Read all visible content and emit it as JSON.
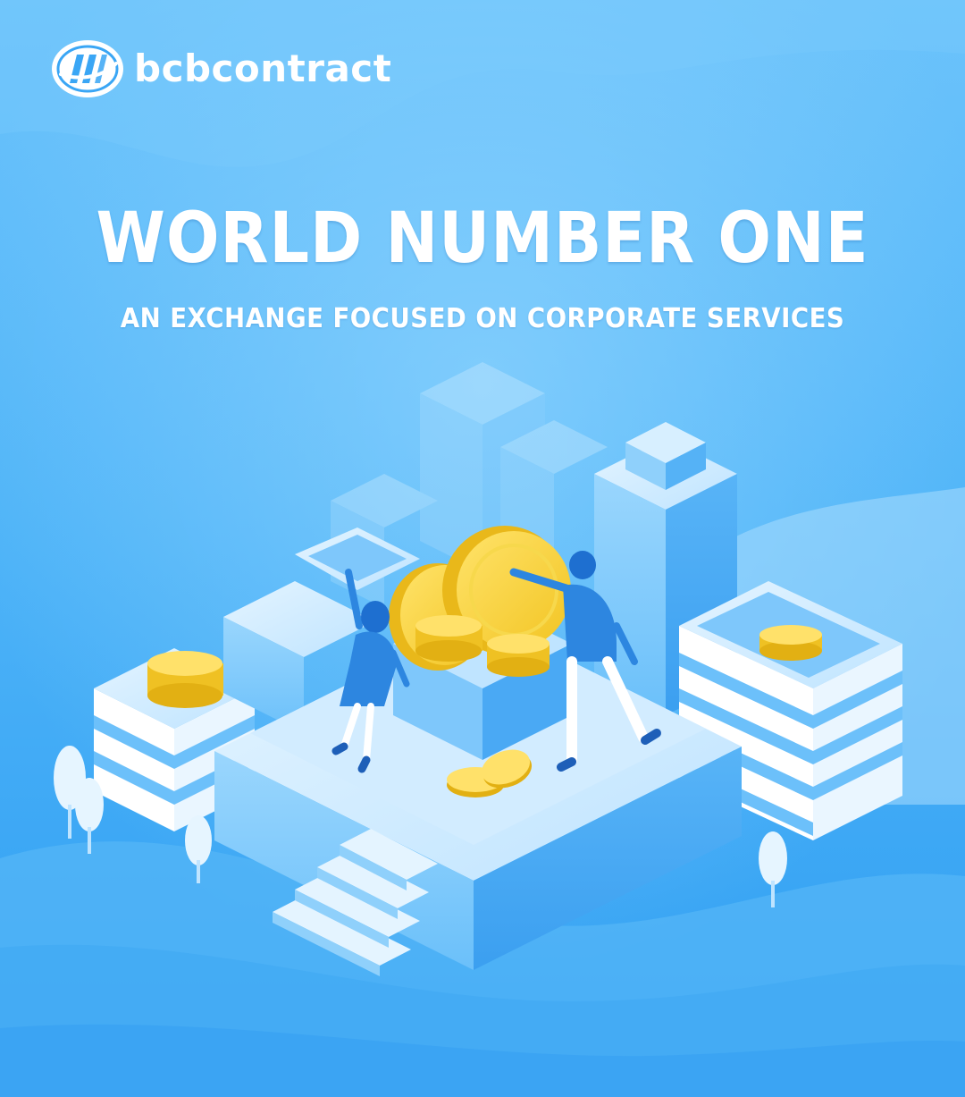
{
  "brand": {
    "name": "bcbcontract",
    "logo_icon": "bcb-logo-icon"
  },
  "hero": {
    "title": "WORLD NUMBER ONE",
    "subtitle": "AN EXCHANGE FOCUSED ON CORPORATE SERVICES"
  },
  "colors": {
    "background_top": "#6cc3fb",
    "background_bottom": "#2f9ef2",
    "accent_coin": "#f5cf2f",
    "building_light": "#d8efff",
    "building_mid": "#8fd0fb",
    "building_dark": "#3c9fec"
  },
  "illustration": {
    "icon": "isometric-city-coins-illustration"
  }
}
